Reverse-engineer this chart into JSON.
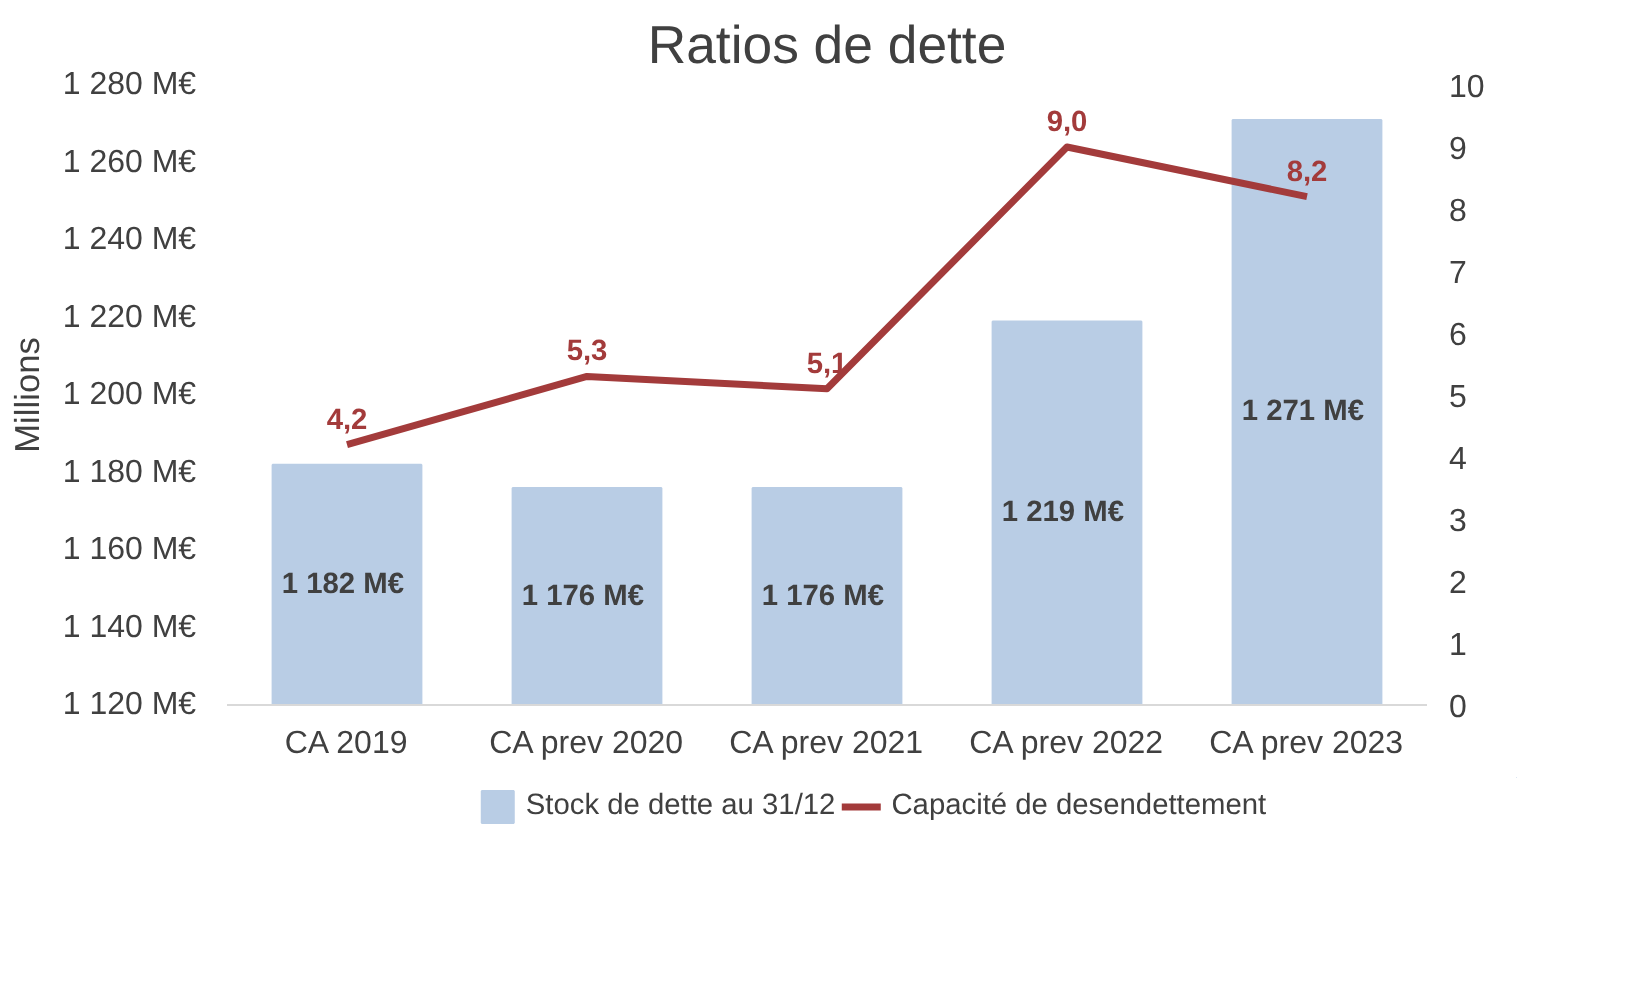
{
  "chart_data": {
    "type": "bar",
    "title": "Ratios de dette",
    "ylabel": "Millions",
    "categories": [
      "CA 2019",
      "CA prev 2020",
      "CA prev 2021",
      "CA prev 2022",
      "CA prev 2023"
    ],
    "series": [
      {
        "name": "Stock de dette au 31/12",
        "color": "#b9cde5",
        "values": [
          1182,
          1176,
          1176,
          1219,
          1271
        ],
        "value_labels": [
          "1 182  M€",
          "1 176  M€",
          "1 176  M€",
          "1 219  M€",
          "1 271  M€"
        ]
      },
      {
        "name": "Capacité de desendettement",
        "type": "line",
        "axis": "y2",
        "color": "#a33b3b",
        "values": [
          4.2,
          5.3,
          5.1,
          9.0,
          8.2
        ],
        "value_labels": [
          "4,2",
          "5,3",
          "5,1",
          "9,0",
          "8,2"
        ]
      }
    ],
    "ylim": [
      1120,
      1280
    ],
    "yticks": [
      {
        "value": 1120,
        "label": "1 120  M€"
      },
      {
        "value": 1140,
        "label": "1 140  M€"
      },
      {
        "value": 1160,
        "label": "1 160  M€"
      },
      {
        "value": 1180,
        "label": "1 180  M€"
      },
      {
        "value": 1200,
        "label": "1 200  M€"
      },
      {
        "value": 1220,
        "label": "1 220  M€"
      },
      {
        "value": 1240,
        "label": "1 240  M€"
      },
      {
        "value": 1260,
        "label": "1 260  M€"
      },
      {
        "value": 1280,
        "label": "1 280  M€"
      }
    ],
    "y2lim": [
      0,
      10
    ],
    "y2ticks": [
      0,
      1,
      2,
      3,
      4,
      5,
      6,
      7,
      8,
      9,
      10
    ],
    "grid": false,
    "legend": "bottom"
  }
}
